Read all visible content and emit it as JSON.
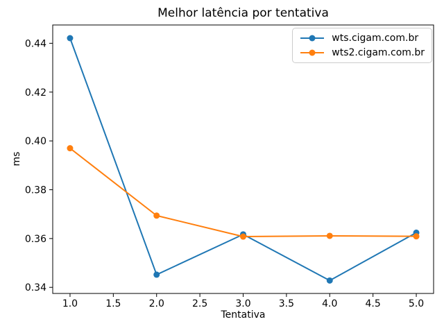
{
  "chart_data": {
    "type": "line",
    "title": "Melhor latência por tentativa",
    "xlabel": "Tentativa",
    "ylabel": "ms",
    "x": [
      1,
      2,
      3,
      4,
      5
    ],
    "series": [
      {
        "name": "wts.cigam.com.br",
        "color": "#1f77b4",
        "values": [
          0.4421,
          0.3452,
          0.3617,
          0.3428,
          0.3624
        ]
      },
      {
        "name": "wts2.cigam.com.br",
        "color": "#ff7f0e",
        "values": [
          0.397,
          0.3694,
          0.3608,
          0.3611,
          0.3609
        ]
      }
    ],
    "xlim": [
      0.8,
      5.2
    ],
    "ylim": [
      0.3375,
      0.4475
    ],
    "xticks": [
      {
        "value": 1.0,
        "label": "1.0"
      },
      {
        "value": 1.5,
        "label": "1.5"
      },
      {
        "value": 2.0,
        "label": "2.0"
      },
      {
        "value": 2.5,
        "label": "2.5"
      },
      {
        "value": 3.0,
        "label": "3.0"
      },
      {
        "value": 3.5,
        "label": "3.5"
      },
      {
        "value": 4.0,
        "label": "4.0"
      },
      {
        "value": 4.5,
        "label": "4.5"
      },
      {
        "value": 5.0,
        "label": "5.0"
      }
    ],
    "yticks": [
      {
        "value": 0.34,
        "label": "0.34"
      },
      {
        "value": 0.36,
        "label": "0.36"
      },
      {
        "value": 0.38,
        "label": "0.38"
      },
      {
        "value": 0.4,
        "label": "0.40"
      },
      {
        "value": 0.42,
        "label": "0.42"
      },
      {
        "value": 0.44,
        "label": "0.44"
      }
    ],
    "grid": false,
    "legend_position": "upper right",
    "marker": "o",
    "line_color_axis": "#000000",
    "background": "#ffffff"
  }
}
